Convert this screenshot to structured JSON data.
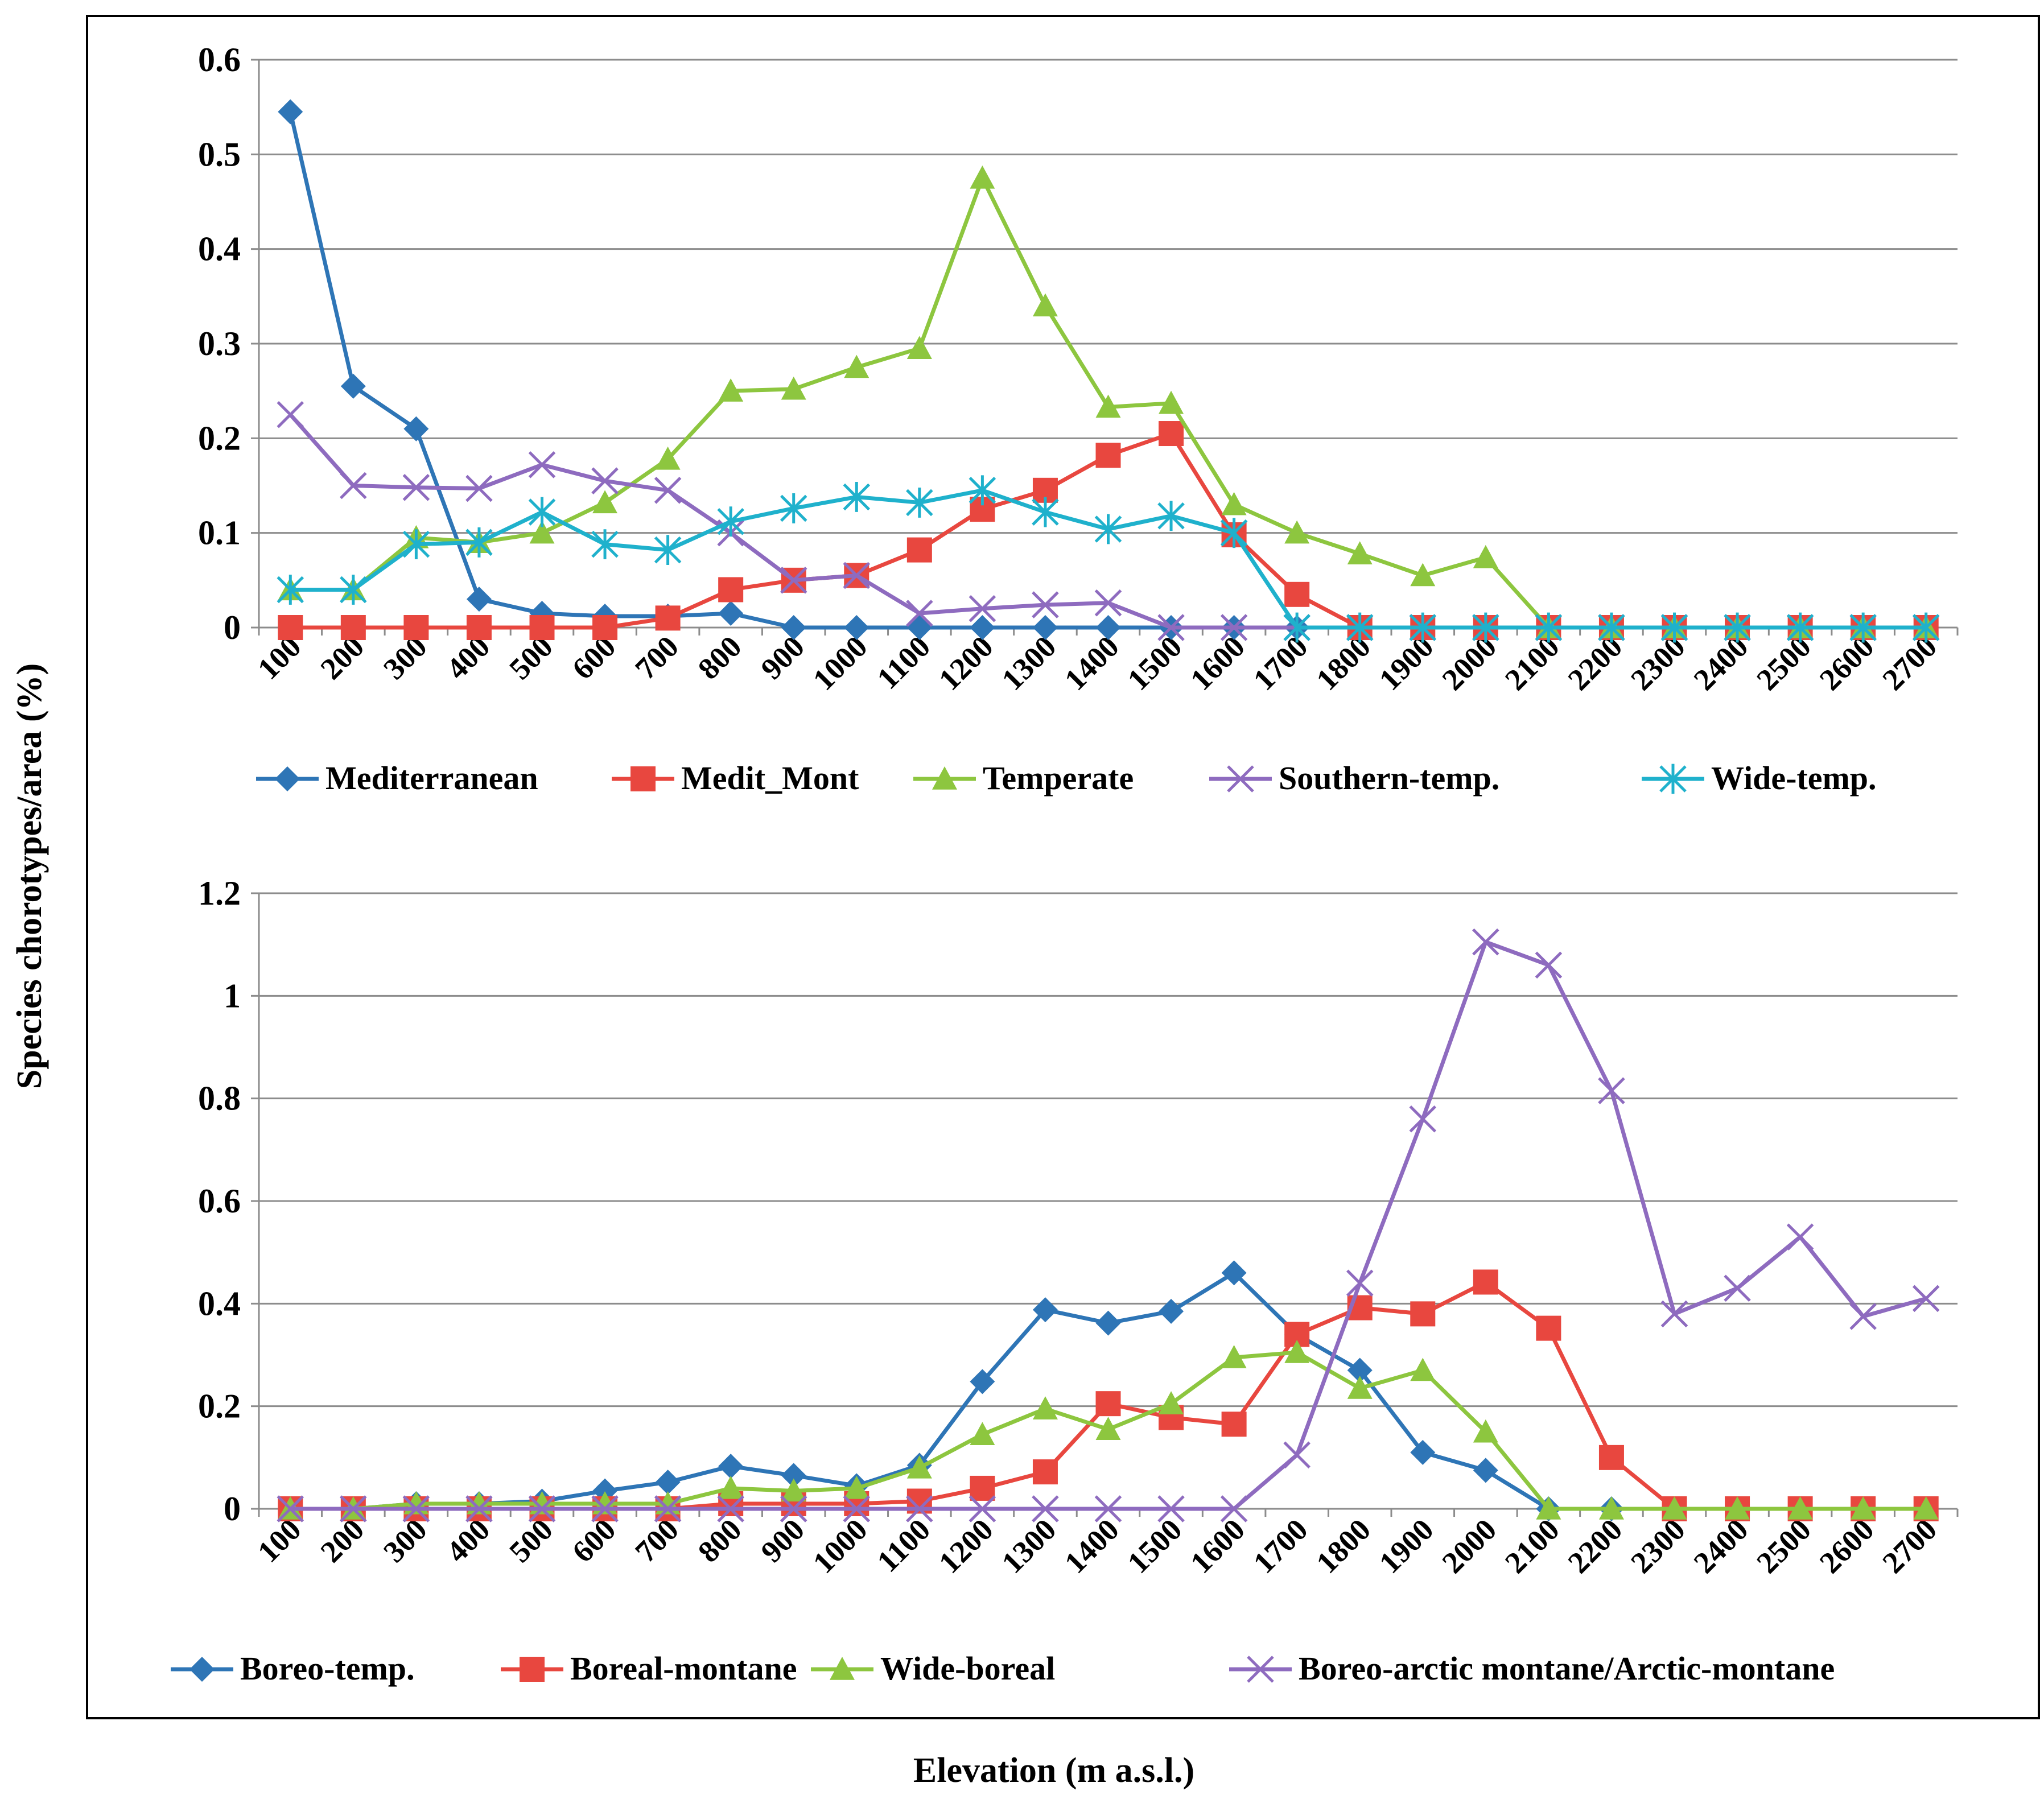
{
  "xlabel": "Elevation  (m a.s.l.)",
  "ylabel": "Species chorotypes/area  (%)",
  "chart_data": [
    {
      "type": "line",
      "title": "",
      "xlabel": "Elevation  (m a.s.l.)",
      "ylabel": "Species chorotypes/area  (%)",
      "ylim": [
        0,
        0.6
      ],
      "yticks": [
        "0",
        "0.1",
        "0.2",
        "0.3",
        "0.4",
        "0.5",
        "0.6"
      ],
      "categories": [
        "100",
        "200",
        "300",
        "400",
        "500",
        "600",
        "700",
        "800",
        "900",
        "1000",
        "1100",
        "1200",
        "1300",
        "1400",
        "1500",
        "1600",
        "1700",
        "1800",
        "1900",
        "2000",
        "2100",
        "2200",
        "2300",
        "2400",
        "2500",
        "2600",
        "2700"
      ],
      "legend_position": "bottom",
      "series": [
        {
          "name": "Mediterranean",
          "color": "#2e75b6",
          "marker": "diamond",
          "values": [
            0.545,
            0.255,
            0.21,
            0.03,
            0.015,
            0.012,
            0.012,
            0.015,
            0,
            0,
            0,
            0,
            0,
            0,
            0,
            0,
            0,
            0,
            0,
            0,
            0,
            0,
            0,
            0,
            0,
            0,
            0
          ]
        },
        {
          "name": "Medit_Mont",
          "color": "#e8473f",
          "marker": "square",
          "values": [
            0,
            0,
            0,
            0,
            0,
            0,
            0.01,
            0.04,
            0.05,
            0.055,
            0.082,
            0.125,
            0.145,
            0.182,
            0.205,
            0.098,
            0.035,
            0,
            0,
            0,
            0,
            0,
            0,
            0,
            0,
            0,
            0
          ]
        },
        {
          "name": "Temperate",
          "color": "#8dc63f",
          "marker": "triangle",
          "values": [
            0.04,
            0.04,
            0.095,
            0.09,
            0.1,
            0.132,
            0.178,
            0.25,
            0.252,
            0.275,
            0.295,
            0.475,
            0.34,
            0.233,
            0.237,
            0.13,
            0.1,
            0.078,
            0.055,
            0.074,
            0,
            0,
            0,
            0,
            0,
            0,
            0
          ]
        },
        {
          "name": "Southern-temp.",
          "color": "#8e6bbf",
          "marker": "x",
          "values": [
            0.225,
            0.15,
            0.148,
            0.147,
            0.172,
            0.155,
            0.145,
            0.1,
            0.05,
            0.055,
            0.015,
            0.02,
            0.024,
            0.026,
            0,
            0,
            0,
            0,
            0,
            0,
            0,
            0,
            0,
            0,
            0,
            0,
            0
          ]
        },
        {
          "name": "Wide-temp.",
          "color": "#1fb1cc",
          "marker": "star",
          "values": [
            0.04,
            0.04,
            0.088,
            0.09,
            0.122,
            0.088,
            0.082,
            0.112,
            0.126,
            0.138,
            0.132,
            0.145,
            0.122,
            0.104,
            0.118,
            0.1,
            0,
            0,
            0,
            0,
            0,
            0,
            0,
            0,
            0,
            0,
            0
          ]
        }
      ]
    },
    {
      "type": "line",
      "title": "",
      "xlabel": "Elevation  (m a.s.l.)",
      "ylabel": "Species chorotypes/area  (%)",
      "ylim": [
        0,
        1.2
      ],
      "yticks": [
        "0",
        "0.2",
        "0.4",
        "0.6",
        "0.8",
        "1",
        "1.2"
      ],
      "categories": [
        "100",
        "200",
        "300",
        "400",
        "500",
        "600",
        "700",
        "800",
        "900",
        "1000",
        "1100",
        "1200",
        "1300",
        "1400",
        "1500",
        "1600",
        "1700",
        "1800",
        "1900",
        "2000",
        "2100",
        "2200",
        "2300",
        "2400",
        "2500",
        "2600",
        "2700"
      ],
      "legend_position": "bottom",
      "series": [
        {
          "name": "Boreo-temp.",
          "color": "#2e75b6",
          "marker": "diamond",
          "values": [
            0,
            0,
            0.01,
            0.01,
            0.015,
            0.035,
            0.052,
            0.083,
            0.065,
            0.045,
            0.085,
            0.248,
            0.388,
            0.362,
            0.385,
            0.46,
            0.34,
            0.27,
            0.11,
            0.075,
            0,
            0,
            0,
            0,
            0,
            0,
            0
          ]
        },
        {
          "name": "Boreal-montane",
          "color": "#e8473f",
          "marker": "square",
          "values": [
            0,
            0,
            0,
            0,
            0,
            0,
            0,
            0.01,
            0.01,
            0.01,
            0.015,
            0.04,
            0.072,
            0.205,
            0.178,
            0.165,
            0.34,
            0.392,
            0.38,
            0.442,
            0.352,
            0.1,
            0,
            0,
            0,
            0,
            0
          ]
        },
        {
          "name": "Wide-boreal",
          "color": "#8dc63f",
          "marker": "triangle",
          "values": [
            0,
            0,
            0.01,
            0.01,
            0.01,
            0.01,
            0.01,
            0.04,
            0.035,
            0.04,
            0.08,
            0.145,
            0.195,
            0.155,
            0.205,
            0.295,
            0.305,
            0.235,
            0.27,
            0.15,
            0,
            0,
            0,
            0,
            0,
            0,
            0
          ]
        },
        {
          "name": "Boreo-arctic montane/Arctic-montane",
          "color": "#8e6bbf",
          "marker": "x",
          "values": [
            0,
            0,
            0,
            0,
            0,
            0,
            0,
            0,
            0,
            0,
            0,
            0,
            0,
            0,
            0,
            0,
            0.105,
            0.44,
            0.76,
            1.105,
            1.06,
            0.815,
            0.38,
            0.43,
            0.53,
            0.375,
            0.41
          ]
        }
      ]
    }
  ]
}
